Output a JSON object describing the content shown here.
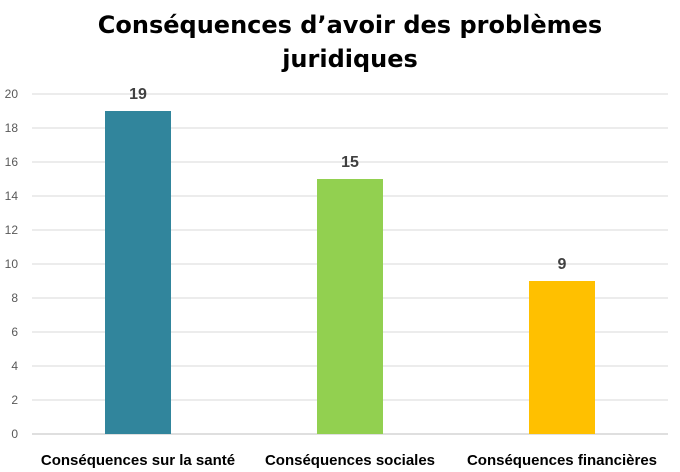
{
  "chart_data": {
    "type": "bar",
    "title": "Conséquences d’avoir des problèmes juridiques",
    "categories": [
      "Conséquences sur la santé",
      "Conséquences sociales",
      "Conséquences financières"
    ],
    "values": [
      19,
      15,
      9
    ],
    "data_labels": [
      "19",
      "15",
      "9"
    ],
    "colors": [
      "#31859C",
      "#92D050",
      "#FFC000"
    ],
    "ylim": [
      0,
      20
    ],
    "yticks": [
      0,
      2,
      4,
      6,
      8,
      10,
      12,
      14,
      16,
      18,
      20
    ],
    "grid": true,
    "legend": "none",
    "xlabel": "",
    "ylabel": ""
  }
}
